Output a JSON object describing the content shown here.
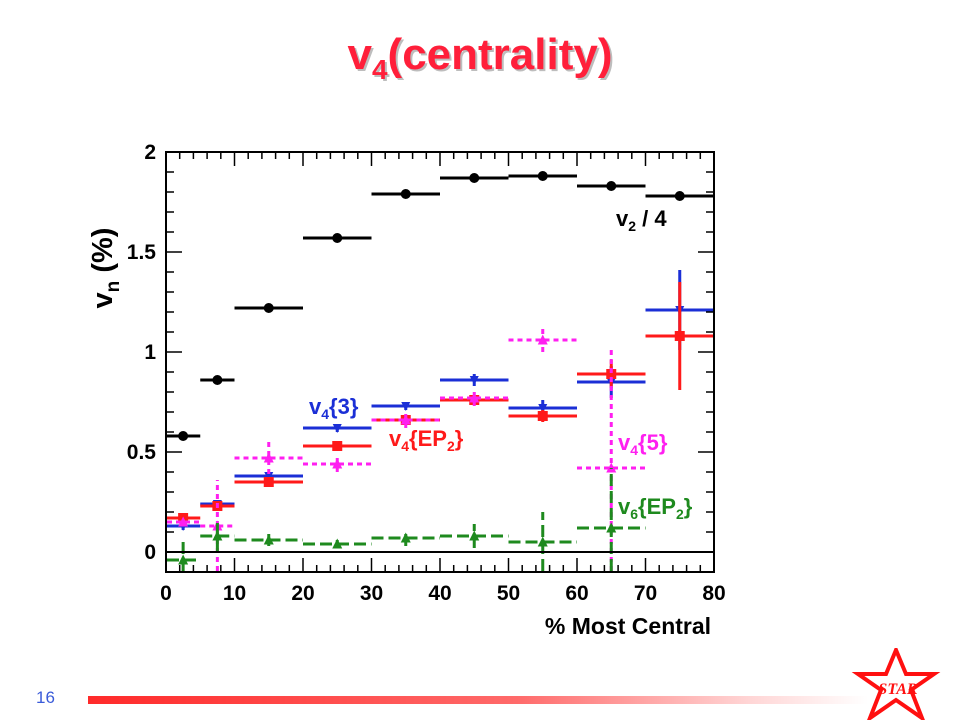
{
  "slide": {
    "title_main": "v",
    "title_sub": "4",
    "title_rest": "(centrality)",
    "page_number": "16",
    "logo_text": "STAR",
    "accent_color": "#ff1f3a"
  },
  "chart_data": {
    "type": "scatter",
    "xlabel": "% Most Central",
    "ylabel_main": "v",
    "ylabel_sub": "n",
    "ylabel_rest": " (%)",
    "xlim": [
      0,
      80
    ],
    "ylim": [
      -0.1,
      2.0
    ],
    "x_ticks": [
      0,
      10,
      20,
      30,
      40,
      50,
      60,
      70,
      80
    ],
    "y_ticks": [
      0,
      0.5,
      1,
      1.5,
      2
    ],
    "y_tick_labels": [
      "0",
      "0.5",
      "1",
      "1.5",
      "2"
    ],
    "zero_line": true,
    "series": [
      {
        "key": "v2",
        "label_main": "v",
        "label_sub": "2",
        "label_rest": " / 4",
        "color": "#000000",
        "marker": "circle",
        "line_style": "solid",
        "points": [
          {
            "x": 2.5,
            "xlo": 0,
            "xhi": 5,
            "y": 0.58,
            "err": 0.01
          },
          {
            "x": 7.5,
            "xlo": 5,
            "xhi": 10,
            "y": 0.86,
            "err": 0.01
          },
          {
            "x": 15,
            "xlo": 10,
            "xhi": 20,
            "y": 1.22,
            "err": 0.01
          },
          {
            "x": 25,
            "xlo": 20,
            "xhi": 30,
            "y": 1.57,
            "err": 0.01
          },
          {
            "x": 35,
            "xlo": 30,
            "xhi": 40,
            "y": 1.79,
            "err": 0.01
          },
          {
            "x": 45,
            "xlo": 40,
            "xhi": 50,
            "y": 1.87,
            "err": 0.01
          },
          {
            "x": 55,
            "xlo": 50,
            "xhi": 60,
            "y": 1.88,
            "err": 0.01
          },
          {
            "x": 65,
            "xlo": 60,
            "xhi": 70,
            "y": 1.83,
            "err": 0.01
          },
          {
            "x": 75,
            "xlo": 70,
            "xhi": 80,
            "y": 1.78,
            "err": 0.01
          }
        ]
      },
      {
        "key": "v4_3",
        "label_main": "v",
        "label_sub": "4",
        "label_rest": "{3}",
        "color": "#1b2fd6",
        "marker": "triangle-down",
        "line_style": "solid",
        "points": [
          {
            "x": 2.5,
            "xlo": 0,
            "xhi": 5,
            "y": 0.13,
            "err": 0.02
          },
          {
            "x": 7.5,
            "xlo": 5,
            "xhi": 10,
            "y": 0.24,
            "err": 0.02
          },
          {
            "x": 15,
            "xlo": 10,
            "xhi": 20,
            "y": 0.38,
            "err": 0.02
          },
          {
            "x": 25,
            "xlo": 20,
            "xhi": 30,
            "y": 0.62,
            "err": 0.02
          },
          {
            "x": 35,
            "xlo": 30,
            "xhi": 40,
            "y": 0.73,
            "err": 0.02
          },
          {
            "x": 45,
            "xlo": 40,
            "xhi": 50,
            "y": 0.86,
            "err": 0.03
          },
          {
            "x": 55,
            "xlo": 50,
            "xhi": 60,
            "y": 0.72,
            "err": 0.04
          },
          {
            "x": 65,
            "xlo": 60,
            "xhi": 70,
            "y": 0.85,
            "err": 0.08
          },
          {
            "x": 75,
            "xlo": 70,
            "xhi": 80,
            "y": 1.21,
            "err": 0.2
          }
        ]
      },
      {
        "key": "v4_ep2",
        "label_main": "v",
        "label_sub": "4",
        "label_rest": "{EP",
        "label_sub2": "2",
        "label_end": "}",
        "color": "#ff1a1a",
        "marker": "square",
        "line_style": "solid",
        "points": [
          {
            "x": 2.5,
            "xlo": 0,
            "xhi": 5,
            "y": 0.17,
            "err": 0.01
          },
          {
            "x": 7.5,
            "xlo": 5,
            "xhi": 10,
            "y": 0.23,
            "err": 0.01
          },
          {
            "x": 15,
            "xlo": 10,
            "xhi": 20,
            "y": 0.35,
            "err": 0.01
          },
          {
            "x": 25,
            "xlo": 20,
            "xhi": 30,
            "y": 0.53,
            "err": 0.01
          },
          {
            "x": 35,
            "xlo": 30,
            "xhi": 40,
            "y": 0.66,
            "err": 0.01
          },
          {
            "x": 45,
            "xlo": 40,
            "xhi": 50,
            "y": 0.76,
            "err": 0.02
          },
          {
            "x": 55,
            "xlo": 50,
            "xhi": 60,
            "y": 0.68,
            "err": 0.03
          },
          {
            "x": 65,
            "xlo": 60,
            "xhi": 70,
            "y": 0.89,
            "err": 0.07
          },
          {
            "x": 75,
            "xlo": 70,
            "xhi": 80,
            "y": 1.08,
            "err": 0.27
          }
        ]
      },
      {
        "key": "v4_5",
        "label_main": "v",
        "label_sub": "4",
        "label_rest": "{5}",
        "color": "#ff1ff0",
        "marker": "triangle-up",
        "line_style": "dashed",
        "points": [
          {
            "x": 2.5,
            "xlo": 0,
            "xhi": 5,
            "y": 0.15,
            "err": 0.02
          },
          {
            "x": 7.5,
            "xlo": 5,
            "xhi": 10,
            "y": 0.13,
            "err": 0.23
          },
          {
            "x": 15,
            "xlo": 10,
            "xhi": 20,
            "y": 0.47,
            "err": 0.08
          },
          {
            "x": 25,
            "xlo": 20,
            "xhi": 30,
            "y": 0.44,
            "err": 0.04
          },
          {
            "x": 35,
            "xlo": 30,
            "xhi": 40,
            "y": 0.66,
            "err": 0.04
          },
          {
            "x": 45,
            "xlo": 40,
            "xhi": 50,
            "y": 0.77,
            "err": 0.04
          },
          {
            "x": 55,
            "xlo": 50,
            "xhi": 60,
            "y": 1.06,
            "err": 0.06
          },
          {
            "x": 65,
            "xlo": 60,
            "xhi": 70,
            "y": 0.42,
            "err": 0.6
          }
        ]
      },
      {
        "key": "v6_ep2",
        "label_main": "v",
        "label_sub": "6",
        "label_rest": "{EP",
        "label_sub2": "2",
        "label_end": "}",
        "color": "#1e8a1e",
        "marker": "triangle-up",
        "line_style": "long-dashed",
        "points": [
          {
            "x": 2.5,
            "xlo": 0,
            "xhi": 5,
            "y": -0.04,
            "err": 0.11
          },
          {
            "x": 7.5,
            "xlo": 5,
            "xhi": 10,
            "y": 0.08,
            "err": 0.08
          },
          {
            "x": 15,
            "xlo": 10,
            "xhi": 20,
            "y": 0.06,
            "err": 0.03
          },
          {
            "x": 25,
            "xlo": 20,
            "xhi": 30,
            "y": 0.04,
            "err": 0.02
          },
          {
            "x": 35,
            "xlo": 30,
            "xhi": 40,
            "y": 0.07,
            "err": 0.04
          },
          {
            "x": 45,
            "xlo": 40,
            "xhi": 50,
            "y": 0.08,
            "err": 0.06
          },
          {
            "x": 55,
            "xlo": 50,
            "xhi": 60,
            "y": 0.05,
            "err": 0.15
          },
          {
            "x": 65,
            "xlo": 60,
            "xhi": 70,
            "y": 0.12,
            "err": 0.3
          }
        ]
      }
    ]
  }
}
